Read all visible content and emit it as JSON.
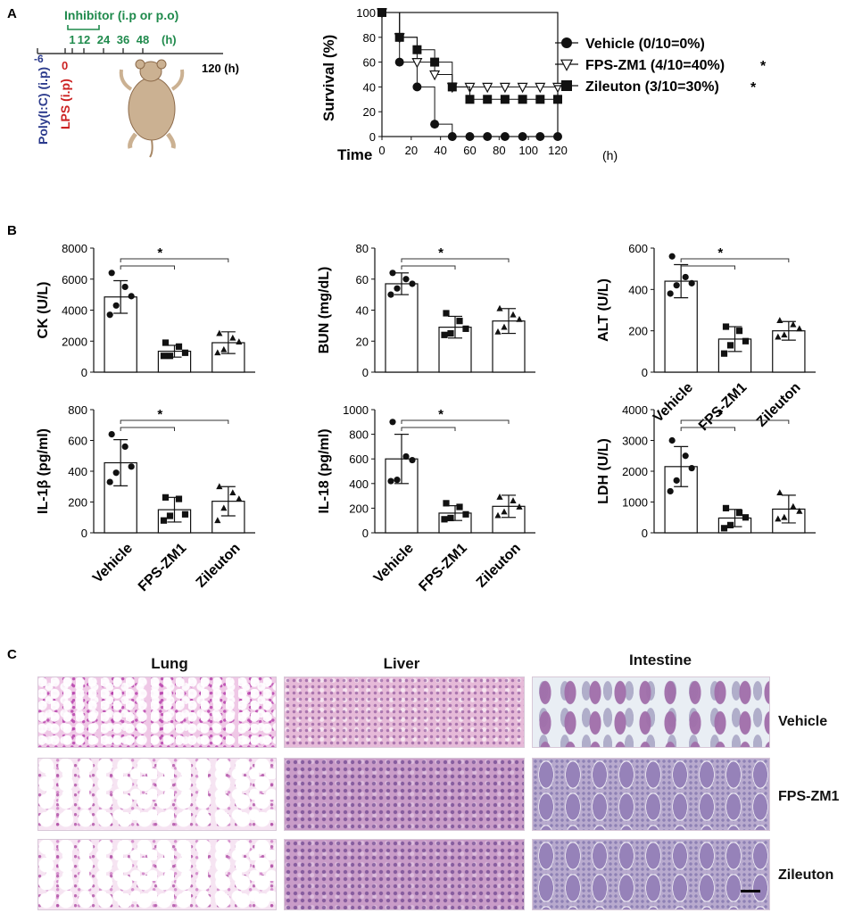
{
  "panels": {
    "a": "A",
    "b": "B",
    "c": "C"
  },
  "timeline": {
    "inhibitor_label": "Inhibitor (i.p or p.o)",
    "inhibitor_ticks": [
      "1",
      "12",
      "24",
      "36",
      "48"
    ],
    "inhibitor_unit": "(h)",
    "polyic_tick": "-6",
    "lps_tick": "0",
    "end_tick": "120 (h)",
    "polyic_label": "Poly(I:C) (i.p)",
    "lps_label": "LPS (i.p)",
    "colors": {
      "inhibitor": "#1f8a4c",
      "polyic": "#2b3a8c",
      "lps": "#cc2222"
    }
  },
  "chart_data": [
    {
      "type": "line",
      "id": "survival",
      "title": "",
      "xlabel": "Time",
      "x_unit": "(h)",
      "ylabel": "Survival (%)",
      "x": [
        0,
        12,
        24,
        36,
        48,
        60,
        72,
        84,
        96,
        108,
        120
      ],
      "xticks": [
        0,
        20,
        40,
        60,
        80,
        100,
        120
      ],
      "yticks": [
        0,
        20,
        40,
        60,
        80,
        100
      ],
      "xlim": [
        0,
        120
      ],
      "ylim": [
        0,
        100
      ],
      "step": true,
      "series": [
        {
          "name": "Vehicle (0/10=0%)",
          "marker": "circle",
          "star": "",
          "values": [
            100,
            60,
            40,
            10,
            0,
            0,
            0,
            0,
            0,
            0,
            0
          ]
        },
        {
          "name": "FPS-ZM1 (4/10=40%)",
          "marker": "triangle-down-open",
          "star": "*",
          "values": [
            100,
            80,
            60,
            50,
            40,
            40,
            40,
            40,
            40,
            40,
            40
          ]
        },
        {
          "name": "Zileuton (3/10=30%)",
          "marker": "square",
          "star": "*",
          "values": [
            100,
            80,
            70,
            60,
            40,
            30,
            30,
            30,
            30,
            30,
            30
          ]
        }
      ],
      "legend": "right"
    },
    {
      "type": "bar",
      "id": "ck",
      "ylabel": "CK (U/L)",
      "categories": [
        "Vehicle",
        "FPS-ZM1",
        "Zileuton"
      ],
      "values": [
        4850,
        1350,
        1900
      ],
      "errors": [
        1050,
        380,
        700
      ],
      "points": [
        [
          6400,
          5500,
          4900,
          4300,
          3700
        ],
        [
          1900,
          1650,
          1250,
          1050,
          1050
        ],
        [
          2500,
          2200,
          1950,
          1450,
          1250
        ]
      ],
      "markers": [
        "circle",
        "square",
        "triangle"
      ],
      "ylim": [
        0,
        8000
      ],
      "yticks": [
        0,
        2000,
        4000,
        6000,
        8000
      ],
      "significance": "*"
    },
    {
      "type": "bar",
      "id": "bun",
      "ylabel": "BUN (mg/dL)",
      "categories": [
        "Vehicle",
        "FPS-ZM1",
        "Zileuton"
      ],
      "values": [
        57,
        29,
        33
      ],
      "errors": [
        7,
        7,
        8
      ],
      "points": [
        [
          64,
          60,
          57,
          54,
          50
        ],
        [
          38,
          33,
          28,
          25,
          24
        ],
        [
          41,
          37,
          34,
          29,
          26
        ]
      ],
      "markers": [
        "circle",
        "square",
        "triangle"
      ],
      "ylim": [
        0,
        80
      ],
      "yticks": [
        0,
        20,
        40,
        60,
        80
      ],
      "significance": "*"
    },
    {
      "type": "bar",
      "id": "alt",
      "ylabel": "ALT (U/L)",
      "categories": [
        "Vehicle",
        "FPS-ZM1",
        "Zileuton"
      ],
      "values": [
        440,
        160,
        200
      ],
      "errors": [
        80,
        60,
        45
      ],
      "points": [
        [
          560,
          460,
          430,
          420,
          380
        ],
        [
          220,
          200,
          150,
          130,
          90
        ],
        [
          250,
          230,
          210,
          180,
          170
        ]
      ],
      "markers": [
        "circle",
        "square",
        "triangle"
      ],
      "ylim": [
        0,
        600
      ],
      "yticks": [
        0,
        200,
        400,
        600
      ],
      "significance": "*"
    },
    {
      "type": "bar",
      "id": "il1b",
      "ylabel": "IL-1β (pg/ml)",
      "categories": [
        "Vehicle",
        "FPS-ZM1",
        "Zileuton"
      ],
      "values": [
        455,
        150,
        205
      ],
      "errors": [
        150,
        80,
        95
      ],
      "points": [
        [
          640,
          560,
          430,
          390,
          330
        ],
        [
          230,
          220,
          120,
          110,
          80
        ],
        [
          300,
          260,
          220,
          160,
          80
        ]
      ],
      "markers": [
        "circle",
        "square",
        "triangle"
      ],
      "ylim": [
        0,
        800
      ],
      "yticks": [
        0,
        200,
        400,
        600,
        800
      ],
      "significance": "*"
    },
    {
      "type": "bar",
      "id": "il18",
      "ylabel": "IL-18 (pg/ml)",
      "categories": [
        "Vehicle",
        "FPS-ZM1",
        "Zileuton"
      ],
      "values": [
        600,
        160,
        215
      ],
      "errors": [
        200,
        60,
        90
      ],
      "points": [
        [
          900,
          620,
          590,
          430,
          420
        ],
        [
          240,
          210,
          150,
          120,
          110
        ],
        [
          290,
          260,
          210,
          170,
          140
        ]
      ],
      "markers": [
        "circle",
        "square",
        "triangle"
      ],
      "ylim": [
        0,
        1000
      ],
      "yticks": [
        0,
        200,
        400,
        600,
        800,
        1000
      ],
      "significance": "*"
    },
    {
      "type": "bar",
      "id": "ldh",
      "ylabel": "LDH (U/L)",
      "categories": [
        "Vehicle",
        "FPS-ZM1",
        "Zileuton"
      ],
      "values": [
        2150,
        480,
        770
      ],
      "errors": [
        650,
        280,
        450
      ],
      "points": [
        [
          3000,
          2500,
          2100,
          1700,
          1350
        ],
        [
          800,
          650,
          500,
          250,
          150
        ],
        [
          1300,
          850,
          700,
          500,
          450
        ]
      ],
      "markers": [
        "circle",
        "square",
        "triangle"
      ],
      "ylim": [
        0,
        4000
      ],
      "yticks": [
        0,
        1000,
        2000,
        3000,
        4000
      ],
      "significance": "*"
    }
  ],
  "histology": {
    "columns": [
      "Lung",
      "Liver",
      "Intestine"
    ],
    "rows": [
      "Vehicle",
      "FPS-ZM1",
      "Zileuton"
    ]
  }
}
